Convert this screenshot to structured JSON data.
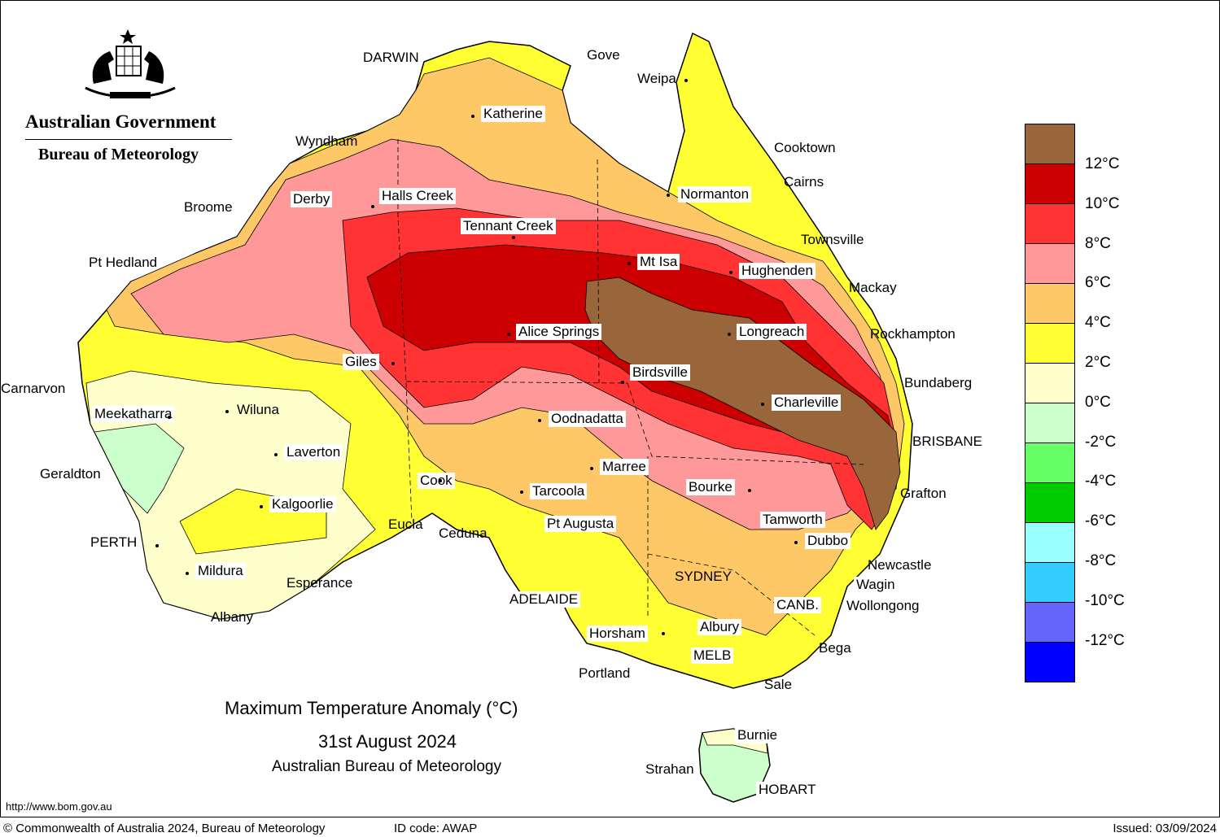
{
  "header": {
    "gov_title": "Australian Government",
    "gov_subtitle": "Bureau of Meteorology"
  },
  "map": {
    "title": "Maximum Temperature Anomaly (°C)",
    "date": "31st August 2024",
    "credit": "Australian Bureau of Meteorology",
    "url": "http://www.bom.gov.au"
  },
  "legend": {
    "colors": [
      "#99653a",
      "#cc0000",
      "#ff3333",
      "#ff9999",
      "#ffc866",
      "#ffff33",
      "#ffffcc",
      "#ccffcc",
      "#66ff66",
      "#00cc00",
      "#99ffff",
      "#33ccff",
      "#6666ff",
      "#0000ff"
    ],
    "labels": [
      "12°C",
      "10°C",
      "8°C",
      "6°C",
      "4°C",
      "2°C",
      "0°C",
      "-2°C",
      "-4°C",
      "-6°C",
      "-8°C",
      "-10°C",
      "-12°C"
    ]
  },
  "cities": [
    {
      "name": "DARWIN",
      "boxed": false
    },
    {
      "name": "Gove",
      "boxed": false
    },
    {
      "name": "Weipa",
      "boxed": false
    },
    {
      "name": "Katherine",
      "boxed": true
    },
    {
      "name": "Wyndham",
      "boxed": false
    },
    {
      "name": "Cooktown",
      "boxed": false
    },
    {
      "name": "Cairns",
      "boxed": false
    },
    {
      "name": "Normanton",
      "boxed": true
    },
    {
      "name": "Broome",
      "boxed": false
    },
    {
      "name": "Derby",
      "boxed": true
    },
    {
      "name": "Halls Creek",
      "boxed": true
    },
    {
      "name": "Tennant Creek",
      "boxed": true
    },
    {
      "name": "Townsville",
      "boxed": false
    },
    {
      "name": "Pt Hedland",
      "boxed": false
    },
    {
      "name": "Mt Isa",
      "boxed": true
    },
    {
      "name": "Hughenden",
      "boxed": true
    },
    {
      "name": "Mackay",
      "boxed": false
    },
    {
      "name": "Alice Springs",
      "boxed": true
    },
    {
      "name": "Longreach",
      "boxed": true
    },
    {
      "name": "Rockhampton",
      "boxed": false
    },
    {
      "name": "Giles",
      "boxed": true
    },
    {
      "name": "Birdsville",
      "boxed": true
    },
    {
      "name": "Bundaberg",
      "boxed": false
    },
    {
      "name": "Carnarvon",
      "boxed": false
    },
    {
      "name": "Meekatharra",
      "boxed": true
    },
    {
      "name": "Wiluna",
      "boxed": false
    },
    {
      "name": "Charleville",
      "boxed": true
    },
    {
      "name": "Oodnadatta",
      "boxed": true
    },
    {
      "name": "BRISBANE",
      "boxed": false
    },
    {
      "name": "Laverton",
      "boxed": true
    },
    {
      "name": "Geraldton",
      "boxed": false
    },
    {
      "name": "Marree",
      "boxed": true
    },
    {
      "name": "Cook",
      "boxed": true
    },
    {
      "name": "Tarcoola",
      "boxed": true
    },
    {
      "name": "Bourke",
      "boxed": true
    },
    {
      "name": "Grafton",
      "boxed": false
    },
    {
      "name": "Kalgoorlie",
      "boxed": true
    },
    {
      "name": "Pt Augusta",
      "boxed": true
    },
    {
      "name": "Tamworth",
      "boxed": true
    },
    {
      "name": "Eucla",
      "boxed": false
    },
    {
      "name": "Ceduna",
      "boxed": false
    },
    {
      "name": "Dubbo",
      "boxed": true
    },
    {
      "name": "PERTH",
      "boxed": false
    },
    {
      "name": "Newcastle",
      "boxed": false
    },
    {
      "name": "Wagin",
      "boxed": true
    },
    {
      "name": "Mildura",
      "boxed": true
    },
    {
      "name": "SYDNEY",
      "boxed": false
    },
    {
      "name": "Esperance",
      "boxed": false
    },
    {
      "name": "ADELAIDE",
      "boxed": true
    },
    {
      "name": "CANB.",
      "boxed": true
    },
    {
      "name": "Wollongong",
      "boxed": false
    },
    {
      "name": "Albany",
      "boxed": false
    },
    {
      "name": "Horsham",
      "boxed": true
    },
    {
      "name": "Albury",
      "boxed": true
    },
    {
      "name": "Bega",
      "boxed": false
    },
    {
      "name": "MELB",
      "boxed": true
    },
    {
      "name": "Portland",
      "boxed": false
    },
    {
      "name": "Sale",
      "boxed": false
    },
    {
      "name": "Burnie",
      "boxed": true
    },
    {
      "name": "Strahan",
      "boxed": false
    },
    {
      "name": "HOBART",
      "boxed": true
    }
  ],
  "footer": {
    "copyright": "© Commonwealth of Australia 2024, Bureau of Meteorology",
    "id_code": "ID code: AWAP",
    "issued": "Issued: 03/09/2024"
  }
}
